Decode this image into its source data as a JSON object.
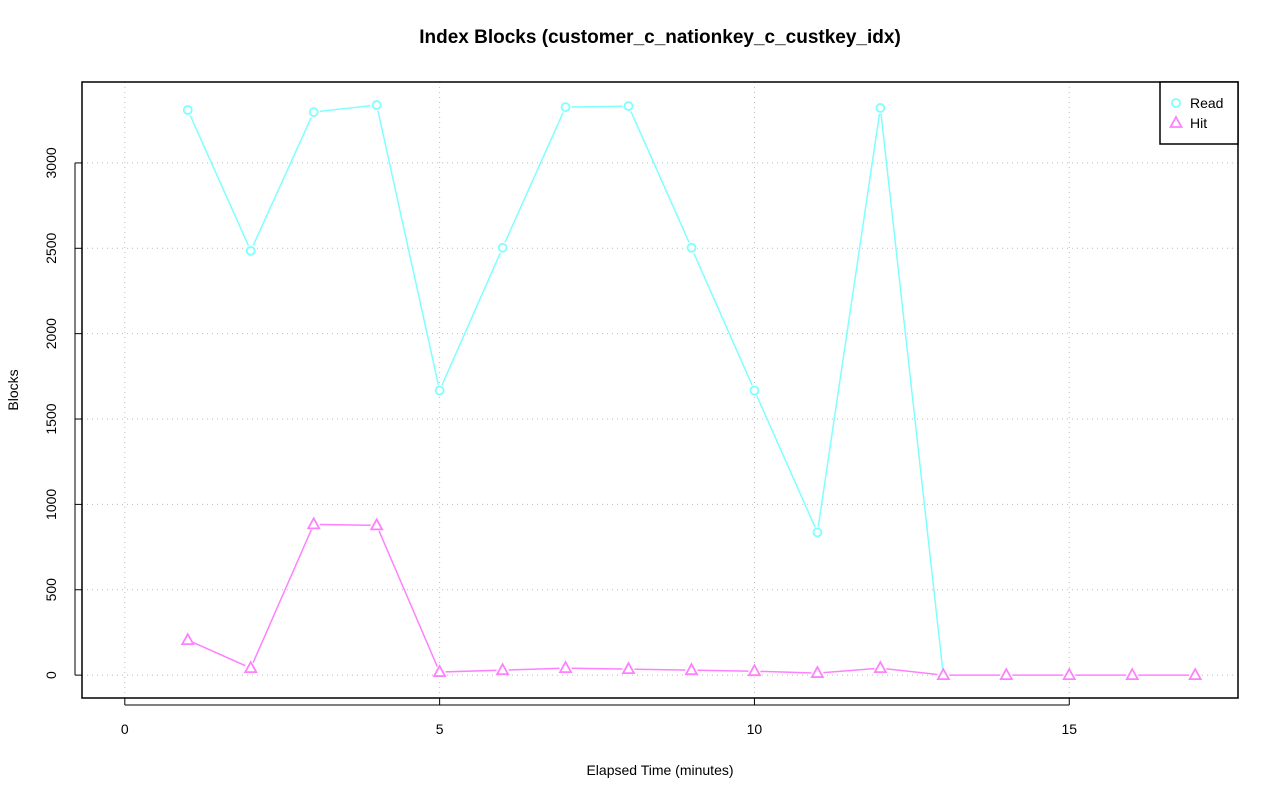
{
  "chart_data": {
    "type": "line",
    "title": "Index Blocks (customer_c_nationkey_c_custkey_idx)",
    "x_label": "Elapsed Time (minutes)",
    "y_label": "Blocks",
    "x": [
      1,
      2,
      3,
      4,
      5,
      6,
      7,
      8,
      9,
      10,
      11,
      12,
      13,
      14,
      15,
      16,
      17
    ],
    "series": [
      {
        "name": "Read",
        "color": "#7fffff",
        "marker": "circle",
        "values": [
          3310,
          2485,
          3298,
          3339,
          1667,
          2503,
          3327,
          3333,
          2503,
          1667,
          836,
          3322,
          0,
          null,
          null,
          null,
          null
        ]
      },
      {
        "name": "Hit",
        "color": "#ff80ff",
        "marker": "triangle",
        "values": [
          205,
          41,
          883,
          877,
          18,
          29,
          41,
          35,
          29,
          23,
          12,
          41,
          0,
          0,
          0,
          0,
          0
        ]
      }
    ],
    "xlim": [
      -0.68,
      17.68
    ],
    "ylim": [
      -134,
      3474
    ],
    "xticks": [
      0,
      5,
      10,
      15
    ],
    "yticks": [
      0,
      500,
      1000,
      1500,
      2000,
      2500,
      3000
    ],
    "grid": true,
    "legend": "top-right"
  }
}
